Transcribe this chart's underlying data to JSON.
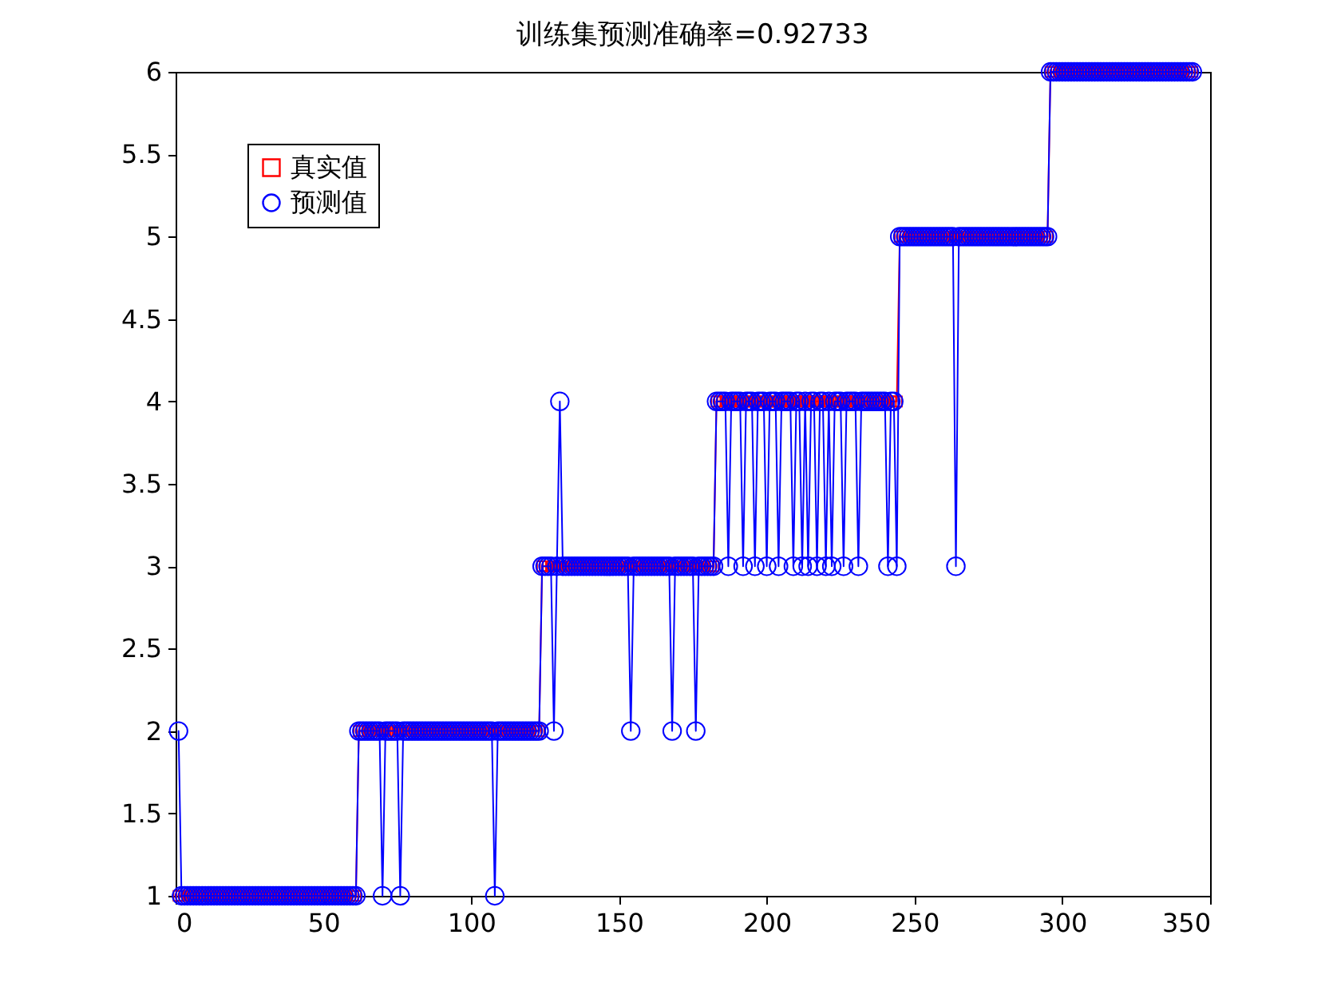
{
  "chart_data": {
    "type": "line",
    "title": "训练集预测准确率=0.92733",
    "x": [
      1,
      2,
      3,
      4,
      5,
      6,
      7,
      8,
      9,
      10,
      11,
      12,
      13,
      14,
      15,
      16,
      17,
      18,
      19,
      20,
      21,
      22,
      23,
      24,
      25,
      26,
      27,
      28,
      29,
      30,
      31,
      32,
      33,
      34,
      35,
      36,
      37,
      38,
      39,
      40,
      41,
      42,
      43,
      44,
      45,
      46,
      47,
      48,
      49,
      50,
      51,
      52,
      53,
      54,
      55,
      56,
      57,
      58,
      59,
      60,
      61,
      62,
      63,
      64,
      65,
      66,
      67,
      68,
      69,
      70,
      71,
      72,
      73,
      74,
      75,
      76,
      77,
      78,
      79,
      80,
      81,
      82,
      83,
      84,
      85,
      86,
      87,
      88,
      89,
      90,
      91,
      92,
      93,
      94,
      95,
      96,
      97,
      98,
      99,
      100,
      101,
      102,
      103,
      104,
      105,
      106,
      107,
      108,
      109,
      110,
      111,
      112,
      113,
      114,
      115,
      116,
      117,
      118,
      119,
      120,
      121,
      122,
      123,
      124,
      125,
      126,
      127,
      128,
      129,
      130,
      131,
      132,
      133,
      134,
      135,
      136,
      137,
      138,
      139,
      140,
      141,
      142,
      143,
      144,
      145,
      146,
      147,
      148,
      149,
      150,
      151,
      152,
      153,
      154,
      155,
      156,
      157,
      158,
      159,
      160,
      161,
      162,
      163,
      164,
      165,
      166,
      167,
      168,
      169,
      170,
      171,
      172,
      173,
      174,
      175,
      176,
      177,
      178,
      179,
      180,
      181,
      182,
      183,
      184,
      185,
      186,
      187,
      188,
      189,
      190,
      191,
      192,
      193,
      194,
      195,
      196,
      197,
      198,
      199,
      200,
      201,
      202,
      203,
      204,
      205,
      206,
      207,
      208,
      209,
      210,
      211,
      212,
      213,
      214,
      215,
      216,
      217,
      218,
      219,
      220,
      221,
      222,
      223,
      224,
      225,
      226,
      227,
      228,
      229,
      230,
      231,
      232,
      233,
      234,
      235,
      236,
      237,
      238,
      239,
      240,
      241,
      242,
      243,
      244,
      245,
      246,
      247,
      248,
      249,
      250,
      251,
      252,
      253,
      254,
      255,
      256,
      257,
      258,
      259,
      260,
      261,
      262,
      263,
      264,
      265,
      266,
      267,
      268,
      269,
      270,
      271,
      272,
      273,
      274,
      275,
      276,
      277,
      278,
      279,
      280,
      281,
      282,
      283,
      284,
      285,
      286,
      287,
      288,
      289,
      290,
      291,
      292,
      293,
      294,
      295,
      296,
      297,
      298,
      299,
      300,
      301,
      302,
      303,
      304,
      305,
      306,
      307,
      308,
      309,
      310,
      311,
      312,
      313,
      314,
      315,
      316,
      317,
      318,
      319,
      320,
      321,
      322,
      323,
      324,
      325,
      326,
      327,
      328,
      329,
      330,
      331,
      332,
      333,
      334,
      335,
      336,
      337,
      338,
      339,
      340,
      341,
      342,
      343,
      344
    ],
    "xlim": [
      0,
      350
    ],
    "xticks": [
      0,
      50,
      100,
      150,
      200,
      250,
      300,
      350
    ],
    "ylim": [
      1,
      6
    ],
    "yticks": [
      1,
      1.5,
      2,
      2.5,
      3,
      3.5,
      4,
      4.5,
      5,
      5.5,
      6
    ],
    "legend": "top left",
    "line_style": "solid",
    "series": [
      {
        "name": "真实值",
        "color": "#ff0000",
        "marker": "square",
        "values": [
          1,
          1,
          1,
          1,
          1,
          1,
          1,
          1,
          1,
          1,
          1,
          1,
          1,
          1,
          1,
          1,
          1,
          1,
          1,
          1,
          1,
          1,
          1,
          1,
          1,
          1,
          1,
          1,
          1,
          1,
          1,
          1,
          1,
          1,
          1,
          1,
          1,
          1,
          1,
          1,
          1,
          1,
          1,
          1,
          1,
          1,
          1,
          1,
          1,
          1,
          1,
          1,
          1,
          1,
          1,
          1,
          1,
          1,
          1,
          1,
          1,
          2,
          2,
          2,
          2,
          2,
          2,
          2,
          2,
          2,
          2,
          2,
          2,
          2,
          2,
          2,
          2,
          2,
          2,
          2,
          2,
          2,
          2,
          2,
          2,
          2,
          2,
          2,
          2,
          2,
          2,
          2,
          2,
          2,
          2,
          2,
          2,
          2,
          2,
          2,
          2,
          2,
          2,
          2,
          2,
          2,
          2,
          2,
          2,
          2,
          2,
          2,
          2,
          2,
          2,
          2,
          2,
          2,
          2,
          2,
          2,
          2,
          2,
          3,
          3,
          3,
          3,
          3,
          3,
          3,
          3,
          3,
          3,
          3,
          3,
          3,
          3,
          3,
          3,
          3,
          3,
          3,
          3,
          3,
          3,
          3,
          3,
          3,
          3,
          3,
          3,
          3,
          3,
          3,
          3,
          3,
          3,
          3,
          3,
          3,
          3,
          3,
          3,
          3,
          3,
          3,
          3,
          3,
          3,
          3,
          3,
          3,
          3,
          3,
          3,
          3,
          3,
          3,
          3,
          3,
          3,
          3,
          4,
          4,
          4,
          4,
          4,
          4,
          4,
          4,
          4,
          4,
          4,
          4,
          4,
          4,
          4,
          4,
          4,
          4,
          4,
          4,
          4,
          4,
          4,
          4,
          4,
          4,
          4,
          4,
          4,
          4,
          4,
          4,
          4,
          4,
          4,
          4,
          4,
          4,
          4,
          4,
          4,
          4,
          4,
          4,
          4,
          4,
          4,
          4,
          4,
          4,
          4,
          4,
          4,
          4,
          4,
          4,
          4,
          4,
          4,
          4,
          4,
          4,
          5,
          5,
          5,
          5,
          5,
          5,
          5,
          5,
          5,
          5,
          5,
          5,
          5,
          5,
          5,
          5,
          5,
          5,
          5,
          5,
          5,
          5,
          5,
          5,
          5,
          5,
          5,
          5,
          5,
          5,
          5,
          5,
          5,
          5,
          5,
          5,
          5,
          5,
          5,
          5,
          5,
          5,
          5,
          5,
          5,
          5,
          5,
          5,
          5,
          5,
          5,
          6,
          6,
          6,
          6,
          6,
          6,
          6,
          6,
          6,
          6,
          6,
          6,
          6,
          6,
          6,
          6,
          6,
          6,
          6,
          6,
          6,
          6,
          6,
          6,
          6,
          6,
          6,
          6,
          6,
          6,
          6,
          6,
          6,
          6,
          6,
          6,
          6,
          6,
          6,
          6,
          6,
          6,
          6,
          6,
          6,
          6,
          6,
          6,
          6
        ]
      },
      {
        "name": "预测值",
        "color": "#0000ff",
        "marker": "circle",
        "values": [
          2,
          1,
          1,
          1,
          1,
          1,
          1,
          1,
          1,
          1,
          1,
          1,
          1,
          1,
          1,
          1,
          1,
          1,
          1,
          1,
          1,
          1,
          1,
          1,
          1,
          1,
          1,
          1,
          1,
          1,
          1,
          1,
          1,
          1,
          1,
          1,
          1,
          1,
          1,
          1,
          1,
          1,
          1,
          1,
          1,
          1,
          1,
          1,
          1,
          1,
          1,
          1,
          1,
          1,
          1,
          1,
          1,
          1,
          1,
          1,
          1,
          2,
          2,
          2,
          2,
          2,
          2,
          2,
          2,
          1,
          2,
          2,
          2,
          2,
          2,
          1,
          2,
          2,
          2,
          2,
          2,
          2,
          2,
          2,
          2,
          2,
          2,
          2,
          2,
          2,
          2,
          2,
          2,
          2,
          2,
          2,
          2,
          2,
          2,
          2,
          2,
          2,
          2,
          2,
          2,
          2,
          2,
          1,
          2,
          2,
          2,
          2,
          2,
          2,
          2,
          2,
          2,
          2,
          2,
          2,
          2,
          2,
          2,
          3,
          3,
          3,
          3,
          2,
          3,
          4,
          3,
          3,
          3,
          3,
          3,
          3,
          3,
          3,
          3,
          3,
          3,
          3,
          3,
          3,
          3,
          3,
          3,
          3,
          3,
          3,
          3,
          3,
          3,
          2,
          3,
          3,
          3,
          3,
          3,
          3,
          3,
          3,
          3,
          3,
          3,
          3,
          3,
          2,
          3,
          3,
          3,
          3,
          3,
          3,
          3,
          2,
          3,
          3,
          3,
          3,
          3,
          3,
          4,
          4,
          4,
          4,
          3,
          4,
          4,
          4,
          4,
          3,
          4,
          4,
          4,
          3,
          4,
          4,
          4,
          3,
          4,
          4,
          4,
          3,
          4,
          4,
          4,
          4,
          3,
          4,
          4,
          3,
          4,
          3,
          4,
          4,
          3,
          4,
          4,
          3,
          4,
          3,
          4,
          4,
          4,
          3,
          4,
          4,
          4,
          4,
          3,
          4,
          4,
          4,
          4,
          4,
          4,
          4,
          4,
          4,
          3,
          4,
          4,
          3,
          5,
          5,
          5,
          5,
          5,
          5,
          5,
          5,
          5,
          5,
          5,
          5,
          5,
          5,
          5,
          5,
          5,
          5,
          5,
          3,
          5,
          5,
          5,
          5,
          5,
          5,
          5,
          5,
          5,
          5,
          5,
          5,
          5,
          5,
          5,
          5,
          5,
          5,
          5,
          5,
          5,
          5,
          5,
          5,
          5,
          5,
          5,
          5,
          5,
          5,
          5,
          6,
          6,
          6,
          6,
          6,
          6,
          6,
          6,
          6,
          6,
          6,
          6,
          6,
          6,
          6,
          6,
          6,
          6,
          6,
          6,
          6,
          6,
          6,
          6,
          6,
          6,
          6,
          6,
          6,
          6,
          6,
          6,
          6,
          6,
          6,
          6,
          6,
          6,
          6,
          6,
          6,
          6,
          6,
          6,
          6,
          6,
          6,
          6,
          6
        ]
      }
    ]
  }
}
